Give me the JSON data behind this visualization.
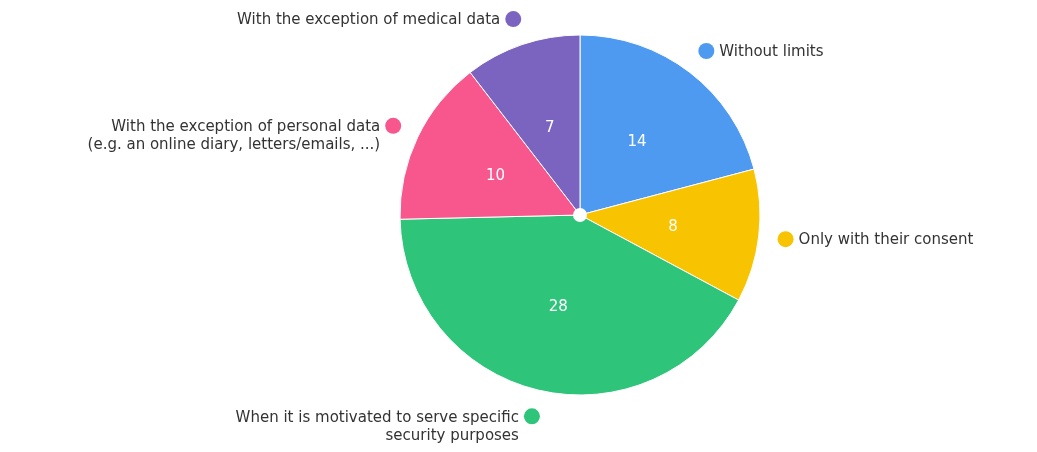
{
  "chart_data": {
    "type": "pie",
    "categories": [
      "Without limits",
      "Only with their consent",
      "When it is motivated to serve specific\nsecurity purposes",
      "With the exception of personal data\n(e.g. an online diary, letters/emails, ...)",
      "With the exception of medical data"
    ],
    "values": [
      14,
      8,
      28,
      10,
      7
    ],
    "colors": [
      "#4e9af1",
      "#f8c300",
      "#2ec47a",
      "#f7578c",
      "#7b64c0"
    ],
    "data_labels": true,
    "legend": "bottom left"
  }
}
